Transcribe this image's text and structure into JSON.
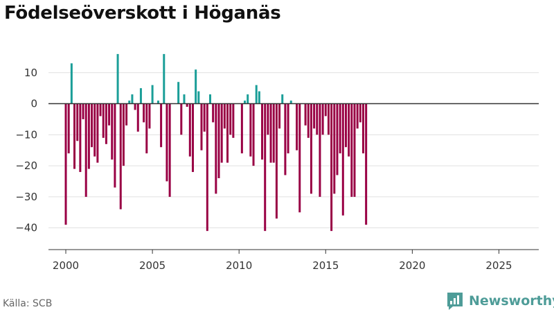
{
  "chart_data": {
    "type": "bar",
    "title": "Födelseöverskott i Höganäs",
    "source": "Källa: SCB",
    "brand": "Newsworthy",
    "xlabel": "",
    "ylabel": "",
    "ylim": [
      -47,
      20
    ],
    "xlim": [
      1999.0,
      2027.3
    ],
    "yticks": [
      10,
      0,
      -10,
      -20,
      -30,
      -40
    ],
    "ytick_labels": [
      "10",
      "0",
      "−10",
      "−20",
      "−30",
      "−40"
    ],
    "xticks": [
      2000,
      2005,
      2010,
      2015,
      2020,
      2025
    ],
    "xtick_labels": [
      "2000",
      "2005",
      "2010",
      "2015",
      "2020",
      "2025"
    ],
    "colors": {
      "positive": "#1a9e98",
      "negative": "#990044",
      "brand": "#4e9c98"
    },
    "series": [
      {
        "name": "Födelseöverskott",
        "start_year": 2000,
        "step_months": 2,
        "values": [
          -39,
          -16,
          13,
          -21,
          -12,
          -22,
          -5,
          -30,
          -21,
          -14,
          -17,
          -19,
          -4,
          -11,
          -13,
          -7,
          -18,
          -27,
          16,
          -34,
          -20,
          -7,
          1,
          3,
          -2,
          -9,
          5,
          -6,
          -16,
          -8,
          6,
          0,
          1,
          -14,
          16,
          -25,
          -30,
          0,
          0,
          7,
          -10,
          3,
          -1,
          -17,
          -22,
          11,
          4,
          -15,
          -9,
          -41,
          3,
          -6,
          -29,
          -24,
          -19,
          -8,
          -19,
          -10,
          -11,
          0,
          0,
          -16,
          1,
          3,
          -17,
          -20,
          6,
          4,
          -18,
          -41,
          -10,
          -19,
          -19,
          -37,
          -8,
          3,
          -23,
          -16,
          1,
          0,
          -15,
          -35,
          0,
          -7,
          -11,
          -29,
          -8,
          -10,
          -30,
          -10,
          -4,
          -10,
          -41,
          -29,
          -23,
          -16,
          -36,
          -14,
          -17,
          -30,
          -30,
          -8,
          -6,
          -16,
          -39
        ]
      }
    ]
  }
}
